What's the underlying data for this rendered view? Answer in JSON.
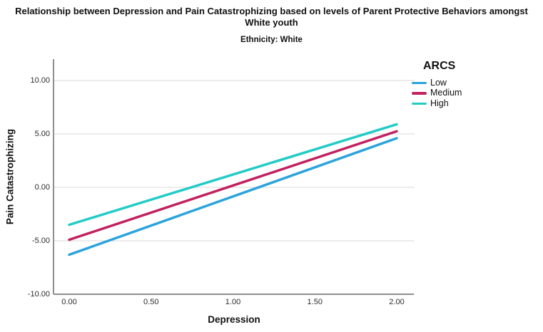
{
  "title": "Relationship between Depression and Pain Catastrophizing based on levels of Parent Protective Behaviors amongst White youth",
  "subtitle": "Ethnicity: White",
  "chart_data": {
    "type": "line",
    "title": "Relationship between Depression and Pain Catastrophizing based on levels of Parent Protective Behaviors amongst White youth",
    "subtitle": "Ethnicity: White",
    "xlabel": "Depression",
    "ylabel": "Pain Catastrophizing",
    "xlim": [
      -0.1,
      2.1
    ],
    "ylim": [
      -10,
      12
    ],
    "xticks": [
      0.0,
      0.5,
      1.0,
      1.5,
      2.0
    ],
    "xtick_labels": [
      "0.00",
      "0.50",
      "1.00",
      "1.50",
      "2.00"
    ],
    "yticks": [
      -10,
      -5,
      0,
      5,
      10
    ],
    "ytick_labels": [
      "-10.00",
      "-5.00",
      "0.00",
      "5.00",
      "10.00"
    ],
    "grid": "horizontal",
    "grid_color": "#d8d8d8",
    "axis_color": "#8f8f8f",
    "legend_title": "ARCS",
    "legend_position": "top-right-outside",
    "series": [
      {
        "name": "Low",
        "color": "#2BA3DC",
        "x": [
          0,
          2
        ],
        "y": [
          -6.3,
          4.6
        ]
      },
      {
        "name": "Medium",
        "color": "#C2205F",
        "x": [
          0,
          2
        ],
        "y": [
          -4.9,
          5.25
        ]
      },
      {
        "name": "High",
        "color": "#23CBC7",
        "x": [
          0,
          2
        ],
        "y": [
          -3.5,
          5.9
        ]
      }
    ]
  }
}
